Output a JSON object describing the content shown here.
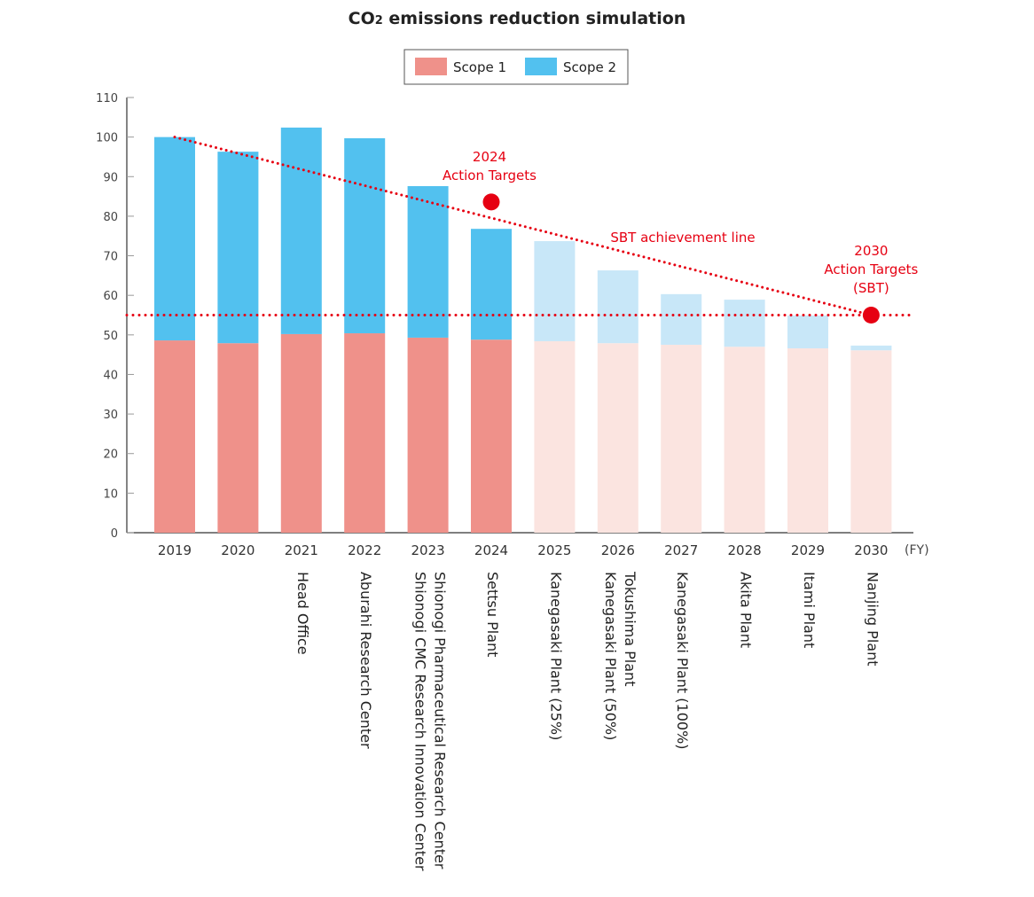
{
  "chart_data": {
    "type": "bar",
    "stacked": true,
    "title": "CO2 emissions reduction simulation",
    "title_parts": {
      "main": "CO",
      "sub": "2",
      "rest": " emissions reduction simulation"
    },
    "xlabel": "",
    "x_unit": "(FY)",
    "ylabel": "",
    "ylim": [
      0,
      110
    ],
    "yticks": [
      0,
      10,
      20,
      30,
      40,
      50,
      60,
      70,
      80,
      90,
      100,
      110
    ],
    "grid": false,
    "legend_placement": "top-center",
    "categories": [
      "2019",
      "2020",
      "2021",
      "2022",
      "2023",
      "2024",
      "2025",
      "2026",
      "2027",
      "2028",
      "2029",
      "2030"
    ],
    "category_notes": [
      [],
      [],
      [
        "Head Office"
      ],
      [
        "Aburahi Research Center"
      ],
      [
        "Shionogi Pharmaceutical Research Center",
        "Shionogi CMC Research Innovation Center"
      ],
      [
        "Settsu Plant"
      ],
      [
        "Kanegasaki Plant (25%)"
      ],
      [
        "Tokushima Plant",
        "Kanegasaki Plant (50%)"
      ],
      [
        "Kanegasaki Plant (100%)"
      ],
      [
        "Akita Plant"
      ],
      [
        "Itami Plant"
      ],
      [
        "Nanjing Plant"
      ]
    ],
    "projected_from": "2025",
    "series": [
      {
        "name": "Scope 1",
        "color": "#ef918a",
        "projected_color": "#fbe4e0",
        "values": [
          48.6,
          47.9,
          50.2,
          50.4,
          49.3,
          48.8,
          48.4,
          47.9,
          47.5,
          47.0,
          46.6,
          46.1
        ]
      },
      {
        "name": "Scope 2",
        "color": "#52c1ef",
        "projected_color": "#c8e7f8",
        "values": [
          51.4,
          48.4,
          52.2,
          49.3,
          38.3,
          28.0,
          25.3,
          18.4,
          12.8,
          11.9,
          8.3,
          1.2
        ]
      }
    ],
    "annotations": {
      "color": "#e60012",
      "sbt_line": {
        "label": "SBT achievement line",
        "from": {
          "x": "2019",
          "y": 100
        },
        "to": {
          "x": "2030",
          "y": 55
        }
      },
      "target_level": {
        "y": 55
      },
      "targets": [
        {
          "x": "2024",
          "y": 83.6,
          "label": [
            "2024",
            "Action Targets"
          ]
        },
        {
          "x": "2030",
          "y": 55,
          "label": [
            "2030",
            "Action Targets",
            "(SBT)"
          ]
        }
      ]
    }
  }
}
